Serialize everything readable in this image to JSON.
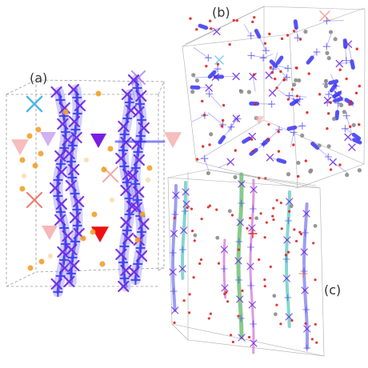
{
  "panels": {
    "a": {
      "label": "(a)"
    },
    "b": {
      "label": "(b)"
    },
    "c": {
      "label": "(c)"
    }
  },
  "colors": {
    "box_edge": "#9a9a9a",
    "chain_blue": "#3b37f0",
    "chain_blue_soft": "#7b78f5",
    "cross_violet": "#6a22e0",
    "cross_cyan": "#4fb8e0",
    "cross_red": "#e86a5a",
    "triangle_pink": "#f4a6a6",
    "triangle_violet": "#7a1ee0",
    "triangle_red": "#ee1111",
    "dot_orange": "#f2a12a",
    "dot_red": "#e0231f",
    "dot_grey": "#8c8c8c",
    "chain_green": "#5fb86a",
    "chain_teal": "#5ec8c0",
    "chain_magenta": "#d07ad6",
    "chain_periwinkle": "#7d7de8"
  }
}
